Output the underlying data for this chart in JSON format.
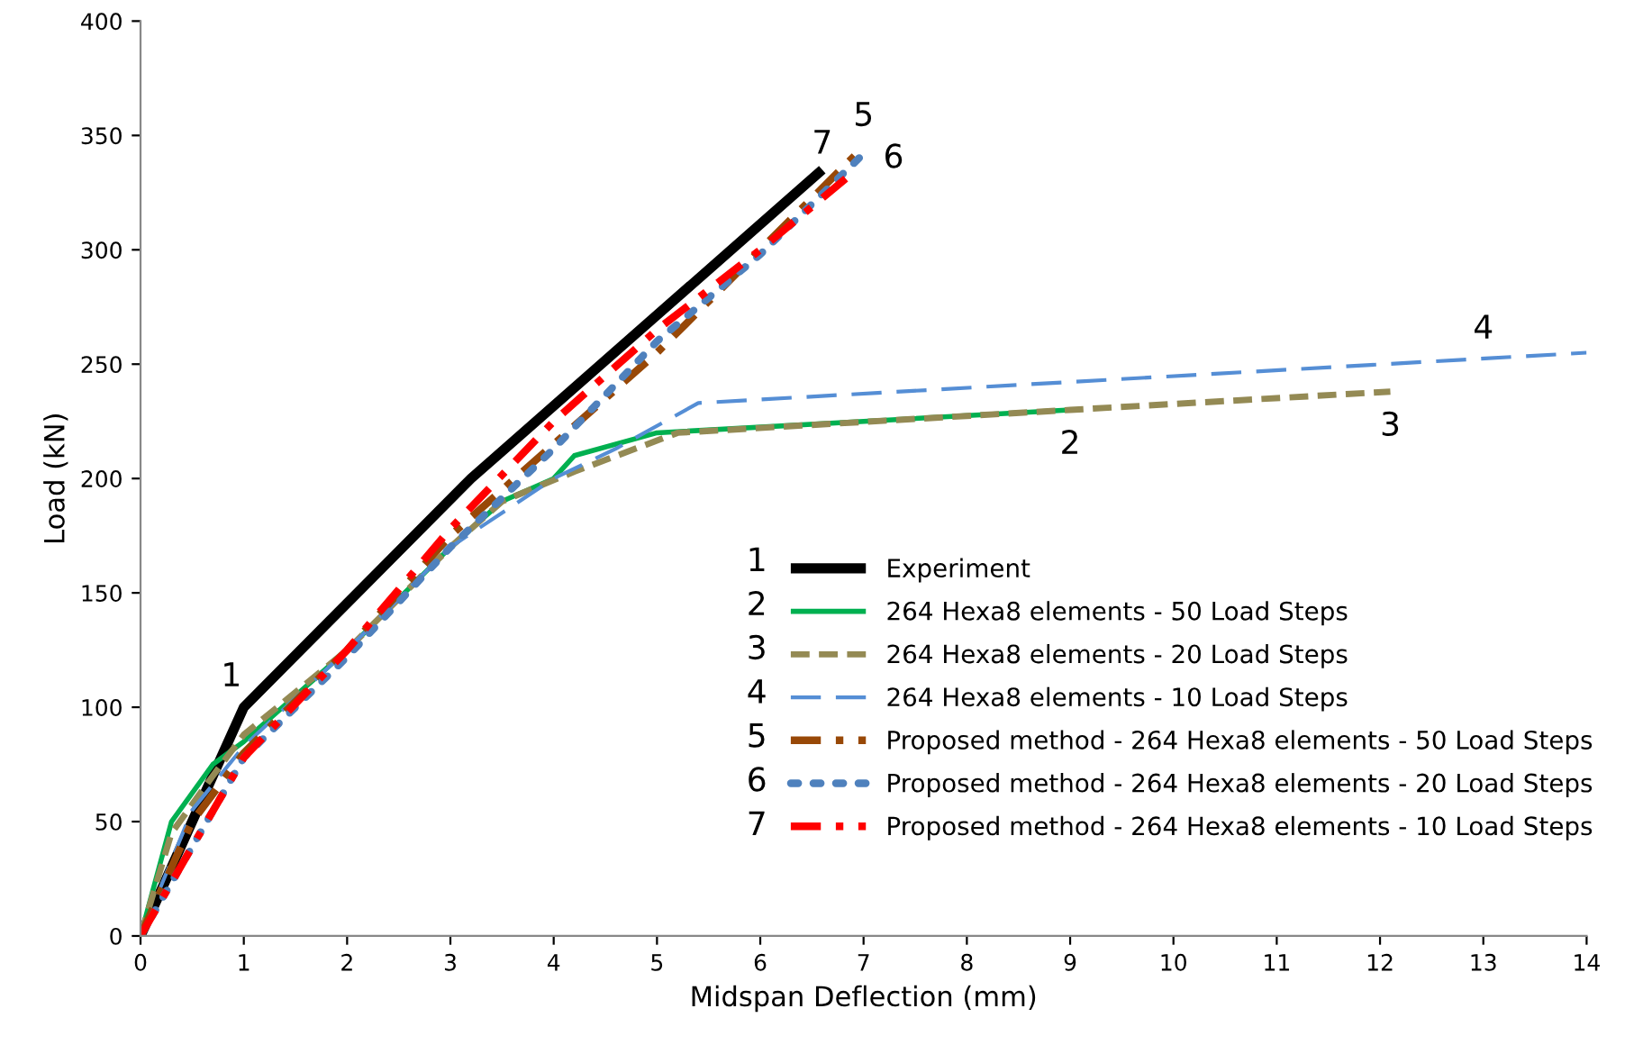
{
  "chart_data": {
    "type": "line",
    "xlabel": "Midspan Deflection (mm)",
    "ylabel": "Load (kN)",
    "xlim": [
      0,
      14
    ],
    "xticks": [
      0,
      1,
      2,
      3,
      4,
      5,
      6,
      7,
      8,
      9,
      10,
      11,
      12,
      13,
      14
    ],
    "ylim": [
      0,
      400
    ],
    "yticks": [
      0,
      50,
      100,
      150,
      200,
      250,
      300,
      350,
      400
    ],
    "grid": false,
    "legend": "bottom right",
    "marker": "none",
    "series": [
      {
        "name": "Experiment",
        "color": "#000000",
        "line_style": "solid",
        "x": [
          0,
          1,
          3.2,
          6.6
        ],
        "values": [
          0,
          100,
          200,
          335
        ]
      },
      {
        "name": "264 Hexa8 elements - 50 Load Steps",
        "color": "#00b050",
        "line_style": "solid",
        "x": [
          0,
          0.3,
          0.7,
          1,
          2,
          3,
          3.5,
          4,
          4.2,
          5,
          9
        ],
        "values": [
          0,
          50,
          75,
          85,
          125,
          170,
          190,
          200,
          210,
          220,
          230
        ]
      },
      {
        "name": "264 Hexa8 elements - 20 Load Steps",
        "color": "#948a54",
        "line_style": "dashed",
        "x": [
          0,
          0.3,
          0.7,
          1,
          2,
          3,
          3.5,
          4.2,
          5.2,
          9,
          12.1
        ],
        "values": [
          0,
          45,
          70,
          88,
          125,
          170,
          190,
          203,
          220,
          230,
          238
        ]
      },
      {
        "name": "264 Hexa8 elements - 10 Load Steps",
        "color": "#558ed5",
        "line_style": "dashed",
        "x": [
          0,
          0.5,
          1,
          2,
          3,
          4,
          4.6,
          5.4,
          14
        ],
        "values": [
          0,
          55,
          83,
          125,
          170,
          200,
          213,
          233,
          255
        ]
      },
      {
        "name": "Proposed method - 264 Hexa8 elements - 50 Load Steps",
        "color": "#984807",
        "line_style": "dashed",
        "x": [
          0,
          0.5,
          1,
          2,
          3,
          4,
          5,
          6,
          7
        ],
        "values": [
          0,
          50,
          80,
          125,
          175,
          215,
          255,
          300,
          345
        ]
      },
      {
        "name": "Proposed method - 264 Hexa8 elements - 20 Load Steps",
        "color": "#4f81bd",
        "line_style": "dotted",
        "x": [
          0,
          1,
          2,
          3,
          4,
          5,
          6,
          7
        ],
        "values": [
          0,
          78,
          122,
          170,
          213,
          260,
          298,
          342
        ]
      },
      {
        "name": "Proposed method - 264 Hexa8 elements - 10 Load Steps",
        "color": "#ff0000",
        "line_style": "dashed",
        "x": [
          0,
          1,
          2,
          3,
          4,
          5,
          6,
          6.85
        ],
        "values": [
          0,
          78,
          125,
          178,
          225,
          265,
          300,
          332
        ]
      }
    ],
    "annotations": [
      {
        "text": "1",
        "x": 1,
        "y": 100
      },
      {
        "text": "2",
        "x": 9,
        "y": 230
      },
      {
        "text": "3",
        "x": 12.1,
        "y": 238
      },
      {
        "text": "4",
        "x": 13,
        "y": 252
      },
      {
        "text": "5",
        "x": 7,
        "y": 345
      },
      {
        "text": "6",
        "x": 7,
        "y": 342
      },
      {
        "text": "7",
        "x": 6.6,
        "y": 335
      },
      "1",
      "2",
      "3",
      "4",
      "5",
      "6",
      "7"
    ]
  }
}
